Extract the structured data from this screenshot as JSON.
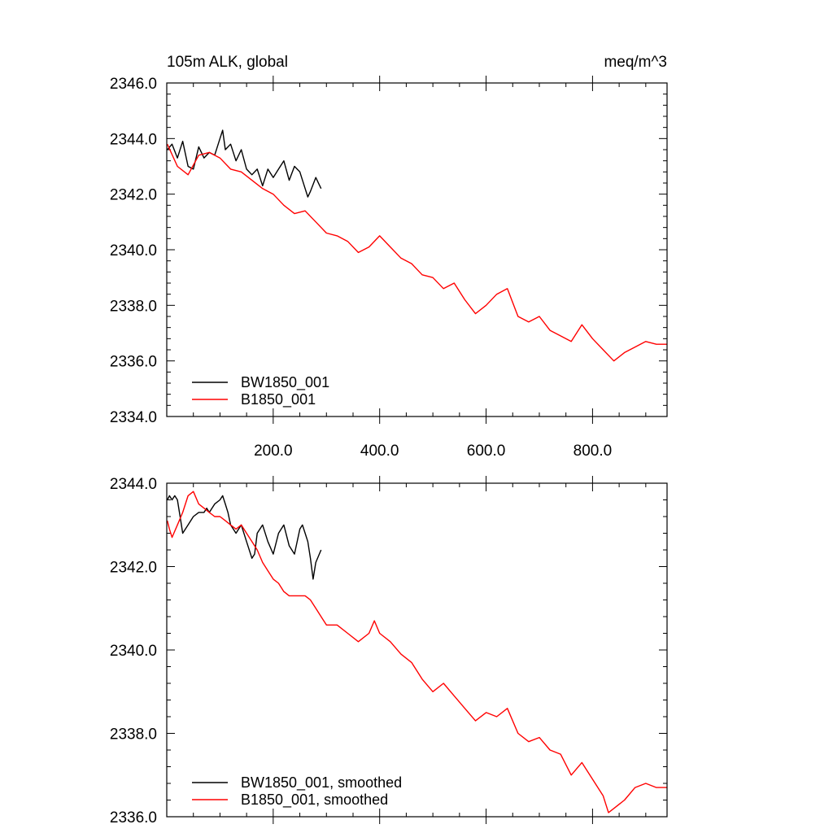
{
  "chart_data": [
    {
      "type": "line",
      "title": "105m ALK, global",
      "units": "meq/m^3",
      "xlabel": "",
      "ylabel": "",
      "xlim": [
        0,
        940
      ],
      "ylim": [
        2334,
        2346
      ],
      "xticks": [
        200,
        400,
        600,
        800
      ],
      "xtick_labels": [
        "200.0",
        "400.0",
        "600.0",
        "800.0"
      ],
      "yticks": [
        2334,
        2336,
        2338,
        2340,
        2342,
        2344,
        2346
      ],
      "ytick_labels": [
        "2334.0",
        "2336.0",
        "2338.0",
        "2340.0",
        "2342.0",
        "2344.0",
        "2346.0"
      ],
      "legend_position": "bottom-left",
      "series": [
        {
          "name": "BW1850_001",
          "color": "#000000",
          "x": [
            1,
            10,
            20,
            30,
            40,
            50,
            60,
            70,
            80,
            90,
            100,
            105,
            110,
            120,
            130,
            140,
            150,
            160,
            170,
            180,
            190,
            200,
            210,
            220,
            230,
            240,
            250,
            260,
            265,
            270,
            280,
            290
          ],
          "y": [
            2343.6,
            2343.8,
            2343.3,
            2343.9,
            2343.0,
            2342.9,
            2343.7,
            2343.3,
            2343.5,
            2343.4,
            2344.0,
            2344.3,
            2343.6,
            2343.8,
            2343.2,
            2343.6,
            2342.9,
            2342.7,
            2342.9,
            2342.3,
            2342.9,
            2342.6,
            2342.9,
            2343.2,
            2342.5,
            2343.0,
            2342.8,
            2342.2,
            2341.9,
            2342.1,
            2342.6,
            2342.2
          ]
        },
        {
          "name": "B1850_001",
          "color": "#ff0000",
          "x": [
            1,
            20,
            40,
            60,
            80,
            100,
            120,
            140,
            160,
            180,
            200,
            220,
            240,
            260,
            280,
            300,
            320,
            340,
            360,
            380,
            400,
            420,
            440,
            460,
            480,
            500,
            520,
            540,
            560,
            580,
            600,
            620,
            640,
            660,
            680,
            700,
            720,
            740,
            760,
            780,
            800,
            820,
            840,
            860,
            880,
            900,
            920,
            940
          ],
          "y": [
            2343.8,
            2343.0,
            2342.7,
            2343.4,
            2343.5,
            2343.3,
            2342.9,
            2342.8,
            2342.5,
            2342.2,
            2342.0,
            2341.6,
            2341.3,
            2341.4,
            2341.0,
            2340.6,
            2340.5,
            2340.3,
            2339.9,
            2340.1,
            2340.5,
            2340.1,
            2339.7,
            2339.5,
            2339.1,
            2339.0,
            2338.6,
            2338.8,
            2338.2,
            2337.7,
            2338.0,
            2338.4,
            2338.6,
            2337.6,
            2337.4,
            2337.6,
            2337.1,
            2336.9,
            2336.7,
            2337.3,
            2336.8,
            2336.4,
            2336.0,
            2336.3,
            2336.5,
            2336.7,
            2336.6,
            2336.6
          ]
        }
      ]
    },
    {
      "type": "line",
      "title": "",
      "xlabel": "",
      "ylabel": "",
      "xlim": [
        0,
        940
      ],
      "ylim": [
        2336,
        2344
      ],
      "yticks": [
        2336,
        2338,
        2340,
        2342,
        2344
      ],
      "ytick_labels": [
        "2336.0",
        "2338.0",
        "2340.0",
        "2342.0",
        "2344.0"
      ],
      "legend_position": "bottom-left",
      "series": [
        {
          "name": "BW1850_001, smoothed",
          "color": "#000000",
          "x": [
            1,
            5,
            10,
            15,
            20,
            25,
            30,
            35,
            40,
            50,
            60,
            70,
            75,
            80,
            90,
            100,
            105,
            110,
            115,
            120,
            130,
            140,
            150,
            160,
            165,
            170,
            180,
            190,
            200,
            210,
            220,
            230,
            240,
            250,
            255,
            260,
            265,
            270,
            275,
            280,
            290
          ],
          "y": [
            2343.6,
            2343.7,
            2343.6,
            2343.7,
            2343.6,
            2343.2,
            2342.8,
            2342.9,
            2343.0,
            2343.2,
            2343.3,
            2343.3,
            2343.4,
            2343.3,
            2343.5,
            2343.6,
            2343.7,
            2343.5,
            2343.3,
            2343.0,
            2342.8,
            2343.0,
            2342.6,
            2342.2,
            2342.3,
            2342.8,
            2343.0,
            2342.6,
            2342.3,
            2342.8,
            2343.0,
            2342.5,
            2342.3,
            2342.9,
            2343.0,
            2342.8,
            2342.6,
            2342.2,
            2341.7,
            2342.1,
            2342.4
          ]
        },
        {
          "name": "B1850_001, smoothed",
          "color": "#ff0000",
          "x": [
            1,
            5,
            10,
            20,
            30,
            40,
            50,
            60,
            70,
            80,
            90,
            100,
            110,
            120,
            130,
            140,
            150,
            160,
            170,
            180,
            190,
            200,
            210,
            220,
            230,
            240,
            250,
            260,
            270,
            280,
            290,
            300,
            320,
            340,
            360,
            380,
            390,
            400,
            420,
            440,
            460,
            480,
            500,
            520,
            540,
            560,
            580,
            600,
            620,
            640,
            660,
            680,
            700,
            720,
            740,
            760,
            780,
            800,
            820,
            830,
            840,
            860,
            880,
            900,
            920,
            940
          ],
          "y": [
            2343.1,
            2342.9,
            2342.7,
            2343.0,
            2343.3,
            2343.7,
            2343.8,
            2343.5,
            2343.4,
            2343.3,
            2343.2,
            2343.2,
            2343.1,
            2343.0,
            2342.9,
            2343.0,
            2342.8,
            2342.6,
            2342.4,
            2342.1,
            2341.9,
            2341.7,
            2341.6,
            2341.4,
            2341.3,
            2341.3,
            2341.3,
            2341.3,
            2341.2,
            2341.0,
            2340.8,
            2340.6,
            2340.6,
            2340.4,
            2340.2,
            2340.4,
            2340.7,
            2340.4,
            2340.2,
            2339.9,
            2339.7,
            2339.3,
            2339.0,
            2339.2,
            2338.9,
            2338.6,
            2338.3,
            2338.5,
            2338.4,
            2338.6,
            2338.0,
            2337.8,
            2337.9,
            2337.6,
            2337.5,
            2337.0,
            2337.3,
            2336.9,
            2336.5,
            2336.1,
            2336.2,
            2336.4,
            2336.7,
            2336.8,
            2336.7,
            2336.7
          ]
        }
      ]
    }
  ]
}
